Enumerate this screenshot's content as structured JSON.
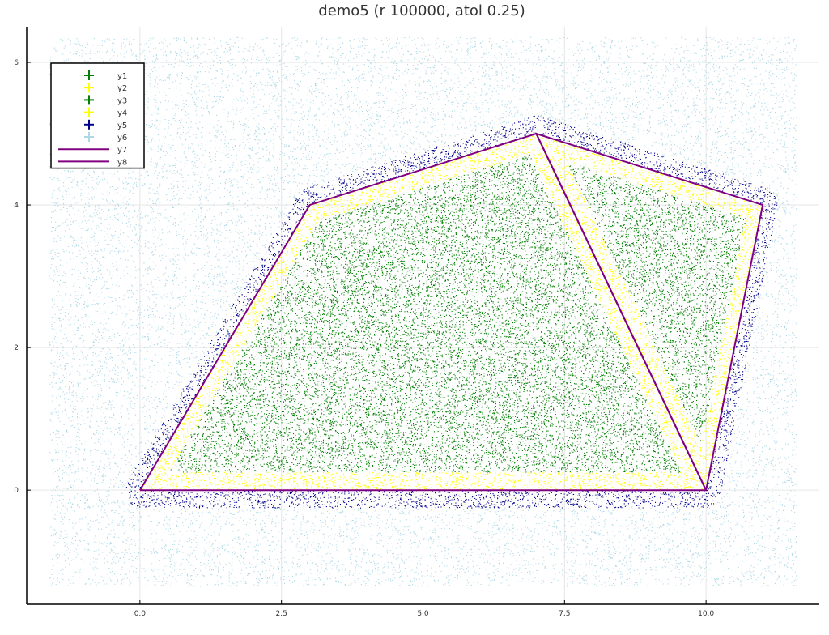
{
  "chart_data": {
    "type": "scatter",
    "title": "demo5 (r 100000, atol 0.25)",
    "xlabel": "",
    "ylabel": "",
    "xlim": [
      -2.0,
      12.0
    ],
    "ylim": [
      -1.6,
      6.5
    ],
    "xticks": [
      0.0,
      2.5,
      5.0,
      7.5,
      10.0
    ],
    "xtick_labels": [
      "0.0",
      "2.5",
      "5.0",
      "7.5",
      "10.0"
    ],
    "yticks": [
      0,
      2,
      4,
      6
    ],
    "ytick_labels": [
      "0",
      "2",
      "4",
      "6"
    ],
    "grid": true,
    "legend_position": "top-left",
    "sample_region": {
      "x": [
        -1.6,
        11.6
      ],
      "y": [
        -1.35,
        6.35
      ]
    },
    "atol": 0.25,
    "polygons": [
      {
        "name": "quadrilateral",
        "vertices": [
          [
            0,
            0
          ],
          [
            10,
            0
          ],
          [
            7,
            5
          ],
          [
            3,
            4
          ]
        ]
      },
      {
        "name": "triangle",
        "vertices": [
          [
            10,
            0
          ],
          [
            7,
            5
          ],
          [
            11,
            4
          ]
        ]
      }
    ],
    "series": [
      {
        "name": "y1",
        "kind": "markers",
        "color": "#007f00"
      },
      {
        "name": "y2",
        "kind": "markers",
        "color": "#ffff00"
      },
      {
        "name": "y3",
        "kind": "markers",
        "color": "#007f00"
      },
      {
        "name": "y4",
        "kind": "markers",
        "color": "#ffff00"
      },
      {
        "name": "y5",
        "kind": "markers",
        "color": "#00008b"
      },
      {
        "name": "y6",
        "kind": "markers",
        "color": "#add8e6"
      },
      {
        "name": "y7",
        "kind": "line",
        "color": "#800080",
        "x": [
          0,
          10,
          7,
          3,
          0
        ],
        "y": [
          0,
          0,
          5,
          4,
          0
        ]
      },
      {
        "name": "y8",
        "kind": "line",
        "color": "#800080",
        "x": [
          10,
          7,
          11,
          10
        ],
        "y": [
          0,
          5,
          4,
          0
        ]
      }
    ]
  }
}
